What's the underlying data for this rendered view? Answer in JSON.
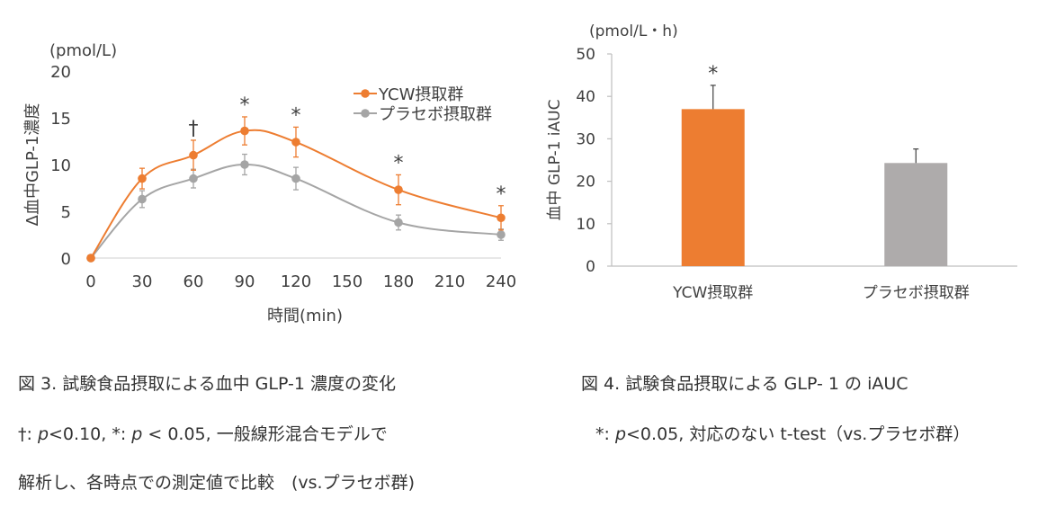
{
  "chart_data": [
    {
      "type": "line",
      "unit_label": "(pmol/L)",
      "ylabel": "Δ血中GLP-1濃度",
      "xlabel": "時間(min)",
      "x": [
        0,
        30,
        60,
        90,
        120,
        180,
        240
      ],
      "xticks": [
        "0",
        "30",
        "60",
        "90",
        "120",
        "150",
        "180",
        "210",
        "240"
      ],
      "xtick_values": [
        0,
        30,
        60,
        90,
        120,
        150,
        180,
        210,
        240
      ],
      "yticks": [
        "0",
        "5",
        "10",
        "15",
        "20"
      ],
      "ytick_values": [
        0,
        5,
        10,
        15,
        20
      ],
      "xlim": [
        0,
        240
      ],
      "ylim": [
        0,
        20
      ],
      "series": [
        {
          "name": "YCW摂取群",
          "color": "#ED7D31",
          "values": [
            0,
            8.5,
            11.0,
            13.6,
            12.4,
            7.3,
            4.3
          ],
          "errors": [
            0,
            1.1,
            1.6,
            1.5,
            1.6,
            1.6,
            1.3
          ]
        },
        {
          "name": "プラセボ摂取群",
          "color": "#A5A5A5",
          "values": [
            0,
            6.3,
            8.5,
            10.0,
            8.5,
            3.8,
            2.5
          ],
          "errors": [
            0,
            0.9,
            1.0,
            1.1,
            1.2,
            0.8,
            0.6
          ]
        }
      ],
      "annotations": [
        {
          "x": 60,
          "text": "†"
        },
        {
          "x": 90,
          "text": "*"
        },
        {
          "x": 120,
          "text": "*"
        },
        {
          "x": 180,
          "text": "*"
        },
        {
          "x": 240,
          "text": "*"
        }
      ]
    },
    {
      "type": "bar",
      "unit_label": "(pmol/L・h)",
      "ylabel": "血中 GLP-1 iAUC",
      "categories": [
        "YCW摂取群",
        "プラセボ摂取群"
      ],
      "values": [
        37.0,
        24.3
      ],
      "errors": [
        5.6,
        3.3
      ],
      "colors": [
        "#ED7D31",
        "#AEABAB"
      ],
      "yticks": [
        "0",
        "10",
        "20",
        "30",
        "40",
        "50"
      ],
      "ytick_values": [
        0,
        10,
        20,
        30,
        40,
        50
      ],
      "ylim": [
        0,
        50
      ],
      "annotations": [
        {
          "category": "YCW摂取群",
          "text": "*"
        }
      ]
    }
  ],
  "captions": {
    "fig3_title": "図 3. 試験食品摂取による血中 GLP-1 濃度の変化",
    "fig3_note1_a": "†: ",
    "fig3_note1_p1": "p",
    "fig3_note1_b": "<0.10, *: ",
    "fig3_note1_p2": "p",
    "fig3_note1_c": " < 0.05,  一般線形混合モデルで",
    "fig3_note2": "解析し、各時点での測定値で比較　(vs.プラセボ群)",
    "fig4_title": "図 4.  試験食品摂取による GLP- 1 の iAUC",
    "fig4_note_a": "*: ",
    "fig4_note_p": "p",
    "fig4_note_b": "<0.05,  対応のない t-test（vs.プラセボ群）"
  }
}
